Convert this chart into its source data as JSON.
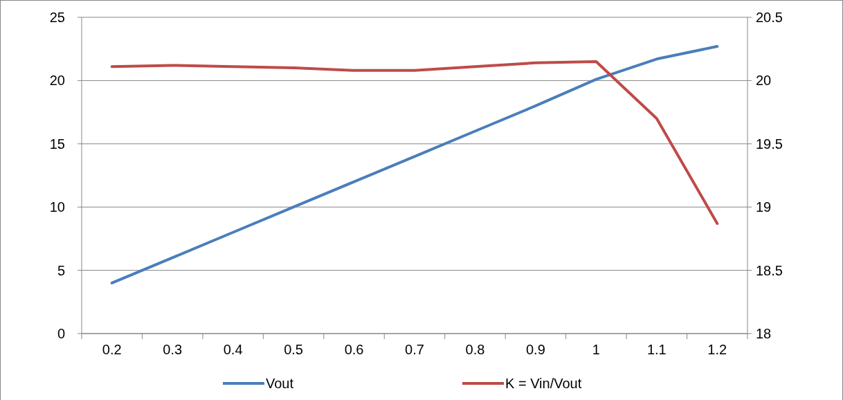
{
  "chart_data": {
    "type": "line",
    "categories": [
      "0.2",
      "0.3",
      "0.4",
      "0.5",
      "0.6",
      "0.7",
      "0.8",
      "0.9",
      "1",
      "1.1",
      "1.2"
    ],
    "series": [
      {
        "name": "Vout",
        "color": "#4a7ebb",
        "values": [
          4,
          6,
          8,
          10,
          12,
          14,
          16,
          18,
          20.1,
          21.7,
          22.7
        ]
      },
      {
        "name": "K = Vin/Vout",
        "color": "#be4b48",
        "axis": "y2",
        "values": [
          20.11,
          20.12,
          20.11,
          20.1,
          20.08,
          20.08,
          20.11,
          20.14,
          20.15,
          19.7,
          18.87
        ]
      }
    ],
    "ylim": [
      0,
      25
    ],
    "yticks": [
      0,
      5,
      10,
      15,
      20,
      25
    ],
    "y2lim": [
      18,
      20.5
    ],
    "y2ticks": [
      18,
      18.5,
      19,
      19.5,
      20,
      20.5
    ],
    "grid": "y",
    "legend": "bottom",
    "marker": "none",
    "line_style": "solid"
  }
}
